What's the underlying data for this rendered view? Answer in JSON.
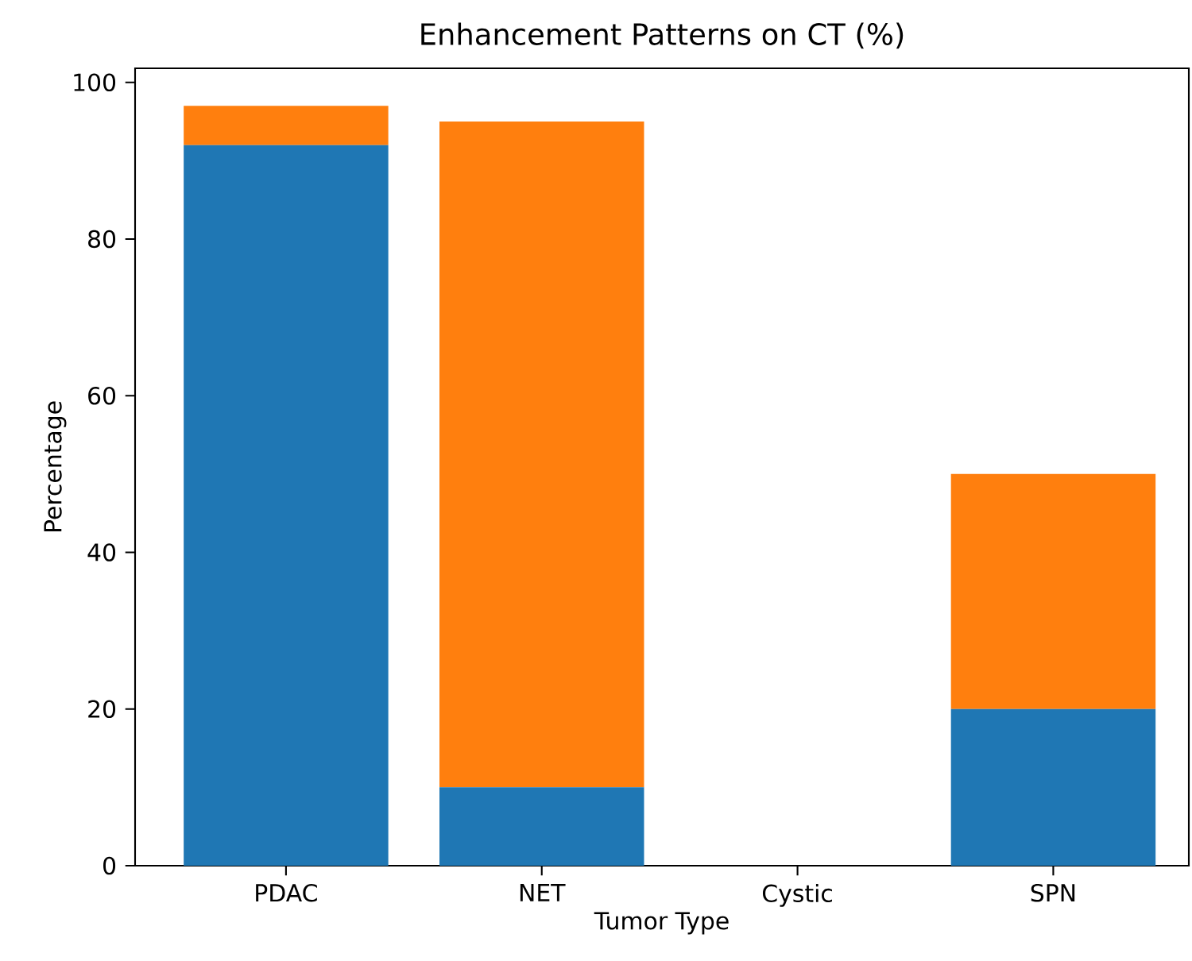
{
  "chart_data": {
    "type": "bar",
    "title": "Enhancement Patterns on CT (%)",
    "xlabel": "Tumor Type",
    "ylabel": "Percentage",
    "categories": [
      "PDAC",
      "NET",
      "Cystic",
      "SPN"
    ],
    "stacked": true,
    "series": [
      {
        "color": "#1f77b4",
        "values": [
          92,
          10,
          0,
          20
        ]
      },
      {
        "color": "#ff7f0e",
        "values": [
          5,
          85,
          0,
          30
        ]
      }
    ],
    "ylim": [
      0,
      101.8
    ],
    "yticks": [
      0,
      20,
      40,
      60,
      80,
      100
    ],
    "grid": false
  }
}
